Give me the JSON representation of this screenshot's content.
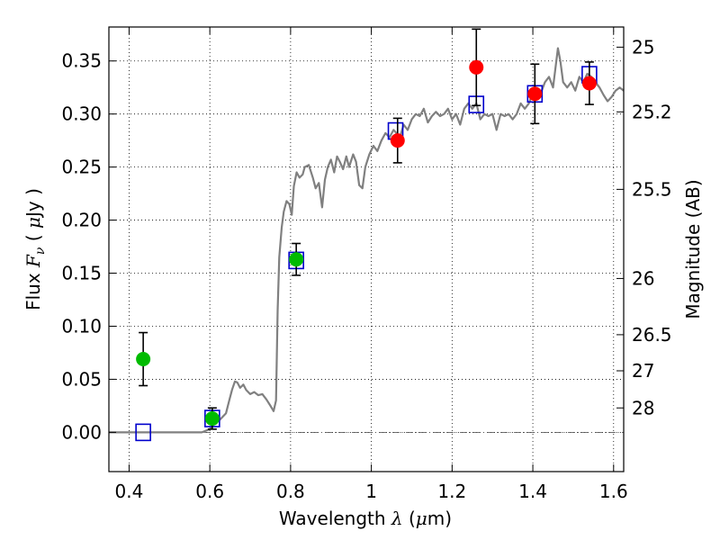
{
  "chart_data": {
    "type": "scatter",
    "xlabel": "Wavelength  λ (μm)",
    "xlabel_parts": {
      "prefix": "Wavelength  ",
      "symbol": "λ",
      "unit_open": " (",
      "mu": "μ",
      "unit_rest": "m)"
    },
    "ylabel_parts": {
      "prefix": "Flux  ",
      "symbol": "F",
      "subscript": "ν",
      "unit_open": "  ( ",
      "mu": "μ",
      "unit_rest": "Jy )"
    },
    "y2label": "Magnitude (AB)",
    "xlim": [
      0.35,
      1.625
    ],
    "ylim": [
      -0.037,
      0.382
    ],
    "xticks": [
      {
        "value": 0.4,
        "label": "0.4"
      },
      {
        "value": 0.6,
        "label": "0.6"
      },
      {
        "value": 0.8,
        "label": "0.8"
      },
      {
        "value": 1.0,
        "label": "1"
      },
      {
        "value": 1.2,
        "label": "1.2"
      },
      {
        "value": 1.4,
        "label": "1.4"
      },
      {
        "value": 1.6,
        "label": "1.6"
      }
    ],
    "yticks": [
      {
        "value": 0.0,
        "label": "0.00"
      },
      {
        "value": 0.05,
        "label": "0.05"
      },
      {
        "value": 0.1,
        "label": "0.10"
      },
      {
        "value": 0.15,
        "label": "0.15"
      },
      {
        "value": 0.2,
        "label": "0.20"
      },
      {
        "value": 0.25,
        "label": "0.25"
      },
      {
        "value": 0.3,
        "label": "0.30"
      },
      {
        "value": 0.35,
        "label": "0.35"
      }
    ],
    "y2ticks": [
      {
        "flux": 0.363,
        "label": "25"
      },
      {
        "flux": 0.302,
        "label": "25.2"
      },
      {
        "flux": 0.229,
        "label": "25.5"
      },
      {
        "flux": 0.145,
        "label": "26"
      },
      {
        "flux": 0.092,
        "label": "26.5"
      },
      {
        "flux": 0.058,
        "label": "27"
      },
      {
        "flux": 0.023,
        "label": "28"
      }
    ],
    "grid": true,
    "series": [
      {
        "kind": "line",
        "color": "#808080",
        "points": [
          [
            0.35,
            0.0
          ],
          [
            0.58,
            0.0
          ],
          [
            0.6,
            0.003
          ],
          [
            0.61,
            0.008
          ],
          [
            0.625,
            0.012
          ],
          [
            0.64,
            0.018
          ],
          [
            0.648,
            0.03
          ],
          [
            0.655,
            0.04
          ],
          [
            0.662,
            0.048
          ],
          [
            0.668,
            0.047
          ],
          [
            0.675,
            0.042
          ],
          [
            0.683,
            0.045
          ],
          [
            0.69,
            0.04
          ],
          [
            0.7,
            0.036
          ],
          [
            0.71,
            0.038
          ],
          [
            0.72,
            0.035
          ],
          [
            0.73,
            0.036
          ],
          [
            0.74,
            0.031
          ],
          [
            0.75,
            0.025
          ],
          [
            0.758,
            0.02
          ],
          [
            0.764,
            0.03
          ],
          [
            0.768,
            0.115
          ],
          [
            0.772,
            0.165
          ],
          [
            0.778,
            0.193
          ],
          [
            0.783,
            0.208
          ],
          [
            0.79,
            0.218
          ],
          [
            0.797,
            0.215
          ],
          [
            0.803,
            0.205
          ],
          [
            0.808,
            0.232
          ],
          [
            0.815,
            0.245
          ],
          [
            0.822,
            0.24
          ],
          [
            0.83,
            0.243
          ],
          [
            0.835,
            0.25
          ],
          [
            0.845,
            0.252
          ],
          [
            0.855,
            0.24
          ],
          [
            0.862,
            0.23
          ],
          [
            0.87,
            0.235
          ],
          [
            0.878,
            0.212
          ],
          [
            0.885,
            0.238
          ],
          [
            0.892,
            0.25
          ],
          [
            0.9,
            0.257
          ],
          [
            0.908,
            0.245
          ],
          [
            0.915,
            0.26
          ],
          [
            0.922,
            0.255
          ],
          [
            0.93,
            0.248
          ],
          [
            0.938,
            0.26
          ],
          [
            0.945,
            0.25
          ],
          [
            0.955,
            0.262
          ],
          [
            0.962,
            0.255
          ],
          [
            0.97,
            0.233
          ],
          [
            0.978,
            0.23
          ],
          [
            0.985,
            0.25
          ],
          [
            0.995,
            0.262
          ],
          [
            1.005,
            0.27
          ],
          [
            1.015,
            0.265
          ],
          [
            1.025,
            0.275
          ],
          [
            1.035,
            0.282
          ],
          [
            1.045,
            0.278
          ],
          [
            1.055,
            0.285
          ],
          [
            1.06,
            0.283
          ],
          [
            1.07,
            0.277
          ],
          [
            1.08,
            0.29
          ],
          [
            1.09,
            0.285
          ],
          [
            1.1,
            0.295
          ],
          [
            1.11,
            0.3
          ],
          [
            1.12,
            0.298
          ],
          [
            1.13,
            0.305
          ],
          [
            1.14,
            0.292
          ],
          [
            1.15,
            0.298
          ],
          [
            1.16,
            0.302
          ],
          [
            1.17,
            0.298
          ],
          [
            1.18,
            0.3
          ],
          [
            1.19,
            0.305
          ],
          [
            1.2,
            0.295
          ],
          [
            1.21,
            0.3
          ],
          [
            1.22,
            0.29
          ],
          [
            1.23,
            0.305
          ],
          [
            1.24,
            0.31
          ],
          [
            1.25,
            0.305
          ],
          [
            1.26,
            0.31
          ],
          [
            1.27,
            0.295
          ],
          [
            1.28,
            0.3
          ],
          [
            1.29,
            0.298
          ],
          [
            1.3,
            0.3
          ],
          [
            1.31,
            0.285
          ],
          [
            1.32,
            0.3
          ],
          [
            1.33,
            0.298
          ],
          [
            1.34,
            0.3
          ],
          [
            1.35,
            0.295
          ],
          [
            1.36,
            0.3
          ],
          [
            1.37,
            0.31
          ],
          [
            1.38,
            0.305
          ],
          [
            1.39,
            0.31
          ],
          [
            1.4,
            0.32
          ],
          [
            1.41,
            0.315
          ],
          [
            1.42,
            0.32
          ],
          [
            1.43,
            0.33
          ],
          [
            1.44,
            0.335
          ],
          [
            1.45,
            0.325
          ],
          [
            1.455,
            0.34
          ],
          [
            1.462,
            0.362
          ],
          [
            1.468,
            0.35
          ],
          [
            1.475,
            0.33
          ],
          [
            1.485,
            0.325
          ],
          [
            1.495,
            0.33
          ],
          [
            1.505,
            0.322
          ],
          [
            1.515,
            0.335
          ],
          [
            1.525,
            0.33
          ],
          [
            1.535,
            0.338
          ],
          [
            1.545,
            0.335
          ],
          [
            1.555,
            0.33
          ],
          [
            1.565,
            0.325
          ],
          [
            1.575,
            0.318
          ],
          [
            1.585,
            0.312
          ],
          [
            1.595,
            0.316
          ],
          [
            1.605,
            0.322
          ],
          [
            1.615,
            0.325
          ],
          [
            1.625,
            0.322
          ]
        ]
      },
      {
        "kind": "open-square",
        "color": "#0000cc",
        "points": [
          {
            "x": 0.435,
            "y": 0.0
          },
          {
            "x": 0.606,
            "y": 0.013
          },
          {
            "x": 0.814,
            "y": 0.162
          },
          {
            "x": 1.06,
            "y": 0.284
          },
          {
            "x": 1.26,
            "y": 0.309
          },
          {
            "x": 1.405,
            "y": 0.319
          },
          {
            "x": 1.54,
            "y": 0.337
          }
        ]
      },
      {
        "kind": "filled-circle",
        "color": "#00bb00",
        "points": [
          {
            "x": 0.435,
            "y": 0.069,
            "err": 0.025
          },
          {
            "x": 0.606,
            "y": 0.013,
            "err": 0.01
          },
          {
            "x": 0.814,
            "y": 0.163,
            "err": 0.015
          }
        ]
      },
      {
        "kind": "filled-circle",
        "color": "#ff0000",
        "points": [
          {
            "x": 1.065,
            "y": 0.275,
            "err": 0.021
          },
          {
            "x": 1.26,
            "y": 0.344,
            "err": 0.036
          },
          {
            "x": 1.405,
            "y": 0.319,
            "err": 0.028
          },
          {
            "x": 1.54,
            "y": 0.329,
            "err": 0.02
          }
        ]
      }
    ],
    "annotations": [
      {
        "kind": "dash-dot-hline",
        "y": 0.0,
        "color": "#404040"
      }
    ]
  }
}
